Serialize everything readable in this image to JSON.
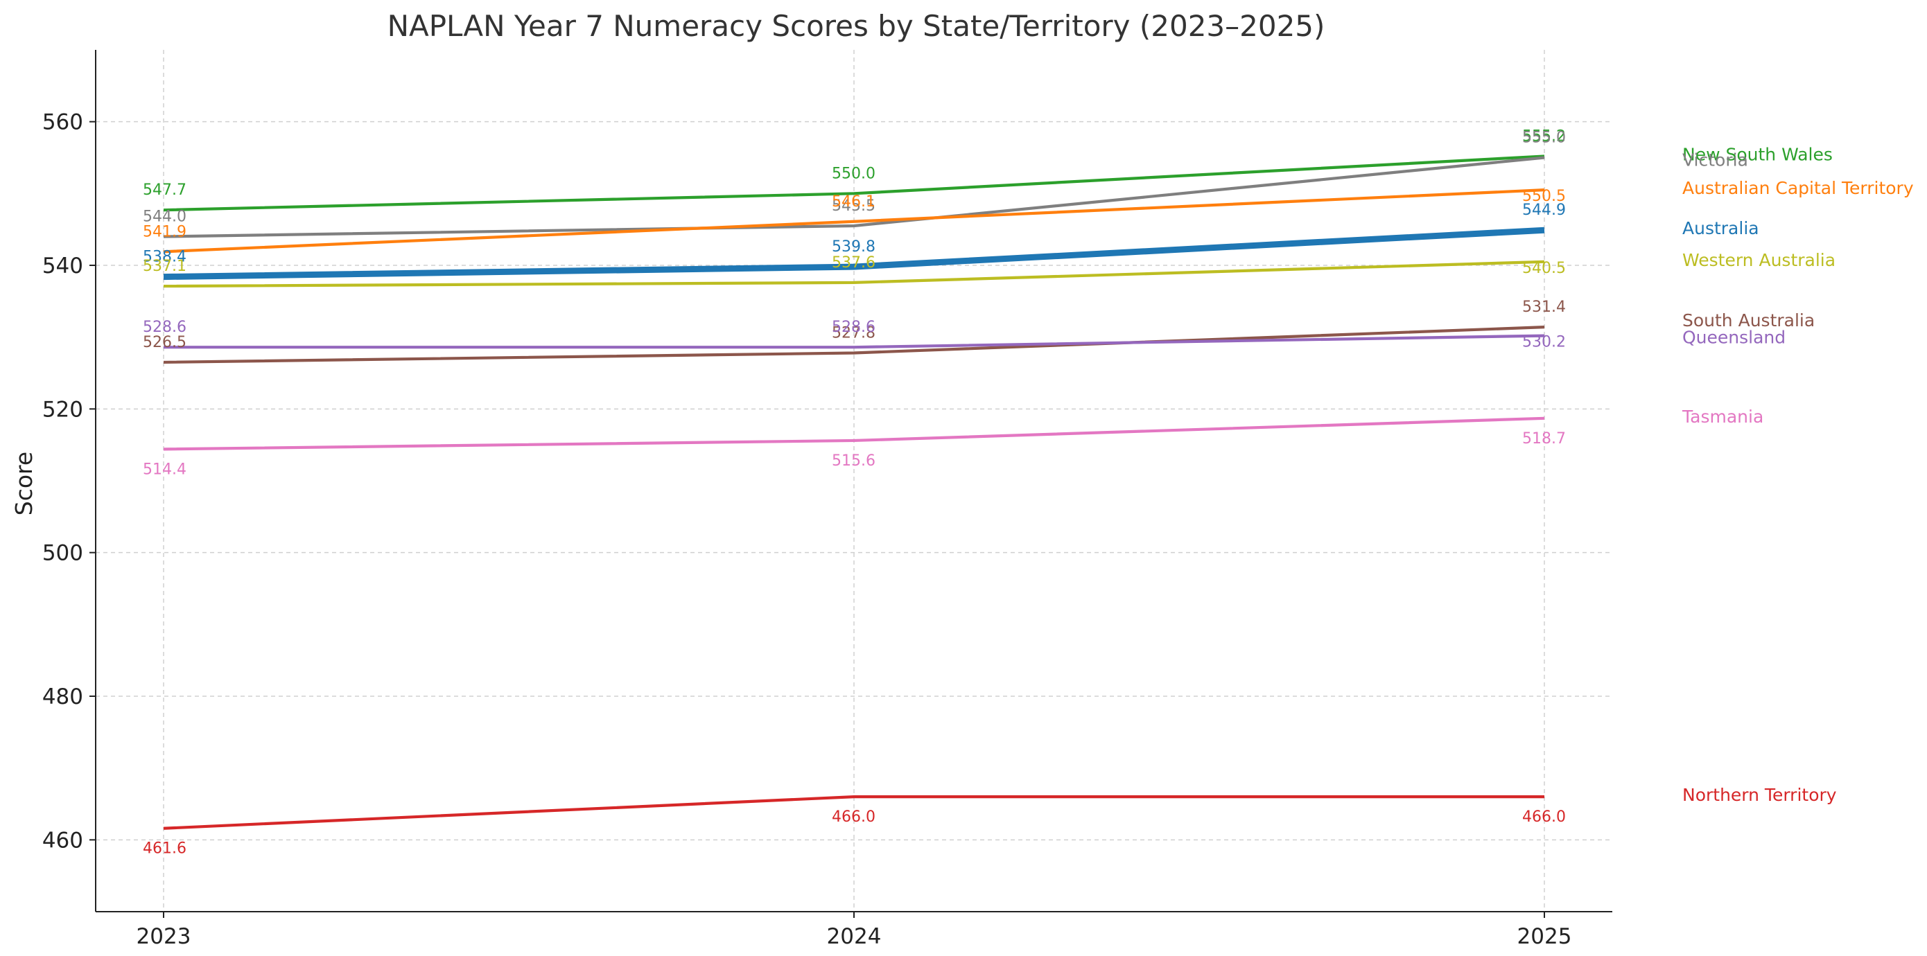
{
  "chart_data": {
    "type": "line",
    "title": "NAPLAN Year 7 Numeracy Scores by State/Territory (2023–2025)",
    "xlabel": "",
    "ylabel": "Score",
    "x": [
      "2023",
      "2024",
      "2025"
    ],
    "ylim": [
      450,
      570
    ],
    "yticks": [
      460,
      480,
      500,
      520,
      540,
      560
    ],
    "grid": true,
    "legend": "direct labels at right end of each line",
    "series": [
      {
        "name": "New South Wales",
        "values": [
          547.7,
          550.0,
          555.2
        ],
        "color": "#2ca02c",
        "labels": [
          "547.7",
          "550.0",
          "555.2"
        ]
      },
      {
        "name": "Victoria",
        "values": [
          544.0,
          545.5,
          555.0
        ],
        "color": "#7f7f7f",
        "labels": [
          "544.0",
          "545.5",
          "555.0"
        ]
      },
      {
        "name": "Australian Capital Territory",
        "values": [
          541.9,
          546.1,
          550.5
        ],
        "color": "#ff7f0e",
        "labels": [
          "541.9",
          "546.1",
          "550.5"
        ]
      },
      {
        "name": "Australia",
        "values": [
          538.4,
          539.8,
          544.9
        ],
        "color": "#1f77b4",
        "labels": [
          "538.4",
          "539.8",
          "544.9"
        ],
        "emphasis": true
      },
      {
        "name": "Western Australia",
        "values": [
          537.1,
          537.6,
          540.5
        ],
        "color": "#bcbd22",
        "labels": [
          "537.1",
          "537.6",
          "540.5"
        ]
      },
      {
        "name": "South Australia",
        "values": [
          526.5,
          527.8,
          531.4
        ],
        "color": "#8c564b",
        "labels": [
          "526.5",
          "527.8",
          "531.4"
        ]
      },
      {
        "name": "Queensland",
        "values": [
          528.6,
          528.6,
          530.2
        ],
        "color": "#9467bd",
        "labels": [
          "528.6",
          "528.6",
          "530.2"
        ]
      },
      {
        "name": "Tasmania",
        "values": [
          514.4,
          515.6,
          518.7
        ],
        "color": "#e377c2",
        "labels": [
          "514.4",
          "515.6",
          "518.7"
        ]
      },
      {
        "name": "Northern Territory",
        "values": [
          461.6,
          466.0,
          466.0
        ],
        "color": "#d62728",
        "labels": [
          "461.6",
          "466.0",
          "466.0"
        ]
      }
    ]
  }
}
